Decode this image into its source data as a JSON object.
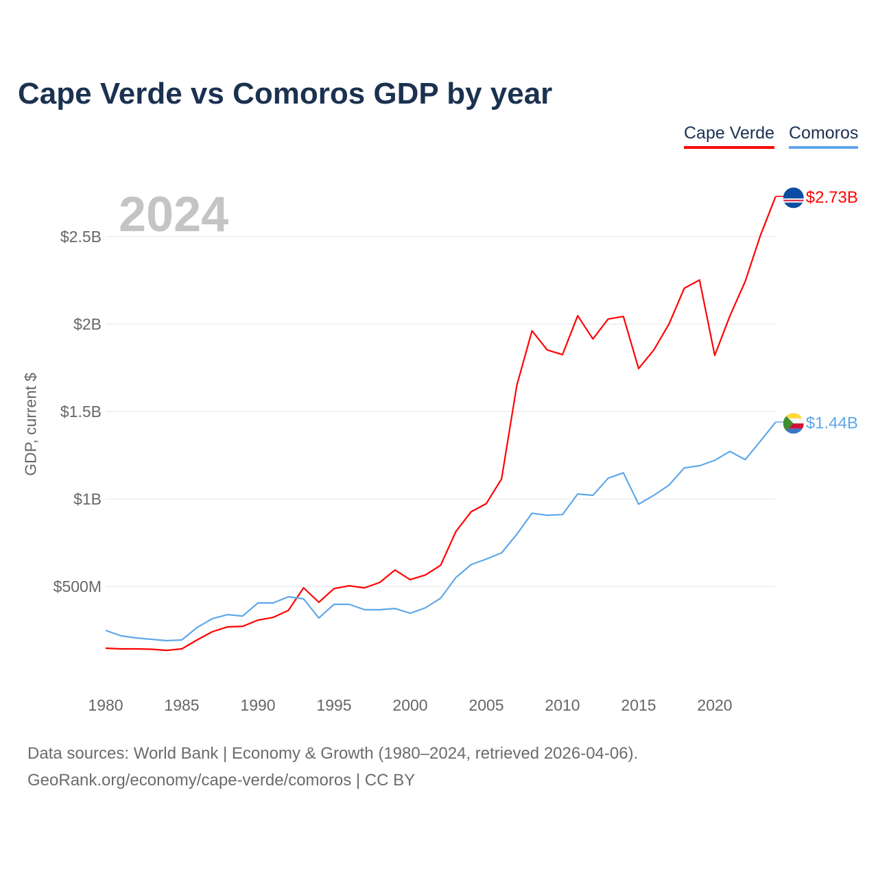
{
  "chart_data": {
    "type": "line",
    "title": "Cape Verde vs Comoros GDP by year",
    "ylabel": "GDP, current $",
    "xlabel": "",
    "highlight_year": "2024",
    "xlim": [
      1980,
      2024
    ],
    "ylim": [
      0,
      2800
    ],
    "y_unit": "million USD",
    "grid": true,
    "legend_position": "top-right",
    "x_ticks": [
      1980,
      1985,
      1990,
      1995,
      2000,
      2005,
      2010,
      2015,
      2020
    ],
    "x_tick_labels": [
      "1980",
      "1985",
      "1990",
      "1995",
      "2000",
      "2005",
      "2010",
      "2015",
      "2020"
    ],
    "y_ticks": [
      500,
      1000,
      1500,
      2000,
      2500
    ],
    "y_tick_labels": [
      "$500M",
      "$1B",
      "$1.5B",
      "$2B",
      "$2.5B"
    ],
    "x": [
      1980,
      1981,
      1982,
      1983,
      1984,
      1985,
      1986,
      1987,
      1988,
      1989,
      1990,
      1991,
      1992,
      1993,
      1994,
      1995,
      1996,
      1997,
      1998,
      1999,
      2000,
      2001,
      2002,
      2003,
      2004,
      2005,
      2006,
      2007,
      2008,
      2009,
      2010,
      2011,
      2012,
      2013,
      2014,
      2015,
      2016,
      2017,
      2018,
      2019,
      2020,
      2021,
      2022,
      2023,
      2024
    ],
    "series": [
      {
        "name": "Cape Verde",
        "color": "#ff0000",
        "end_label": "$2.73B",
        "values": [
          147,
          143,
          143,
          141,
          135,
          143,
          194,
          241,
          269,
          272,
          308,
          323,
          363,
          492,
          410,
          488,
          504,
          492,
          523,
          594,
          539,
          566,
          621,
          814,
          927,
          974,
          1115,
          1649,
          1962,
          1852,
          1825,
          2048,
          1915,
          2029,
          2044,
          1746,
          1852,
          2001,
          2205,
          2252,
          1821,
          2048,
          2244,
          2507,
          2730
        ]
      },
      {
        "name": "Comoros",
        "color": "#5ea7ea",
        "end_label": "$1.44B",
        "values": [
          249,
          218,
          206,
          198,
          190,
          194,
          265,
          316,
          339,
          331,
          406,
          406,
          441,
          429,
          320,
          398,
          398,
          367,
          367,
          374,
          347,
          378,
          433,
          551,
          625,
          657,
          692,
          798,
          919,
          907,
          911,
          1029,
          1021,
          1119,
          1150,
          970,
          1021,
          1080,
          1178,
          1190,
          1221,
          1272,
          1225,
          1331,
          1440
        ]
      }
    ]
  },
  "footer": {
    "line1": "Data sources: World Bank | Economy & Growth (1980–2024, retrieved 2026-04-06).",
    "line2": "GeoRank.org/economy/cape-verde/comoros | CC BY"
  }
}
